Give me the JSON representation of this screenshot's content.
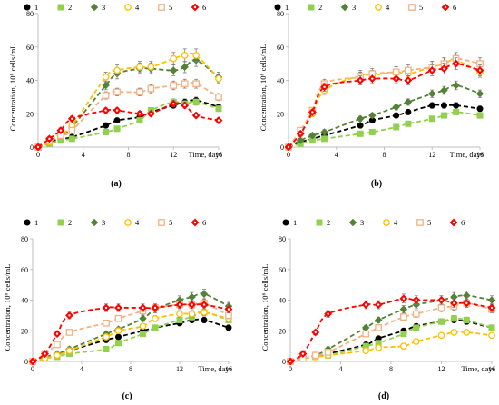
{
  "figure": {
    "panel_count": 4
  },
  "colors": {
    "1": "#000000",
    "2": "#92d050",
    "3": "#548235",
    "4": "#ffc000",
    "5": "#f4b183",
    "6": "#ff0000",
    "axis": "#bfbfbf",
    "error_bar": "#7f7f7f"
  },
  "chart_data": [
    {
      "panel_label": "(a)",
      "type": "scatter",
      "xlabel": "Time, days",
      "ylabel": "Concentration, 10⁶ cells/mL",
      "xlim": [
        0,
        16
      ],
      "ylim": [
        0,
        80
      ],
      "xticks": [
        0,
        4,
        8,
        12,
        16
      ],
      "yticks": [
        0,
        20,
        40,
        60,
        80
      ],
      "legend_position": "top",
      "series": [
        {
          "name": "1",
          "marker": "circle",
          "x": [
            0,
            1,
            2,
            3,
            6,
            7,
            9,
            10,
            12,
            13,
            14,
            16
          ],
          "y": [
            0,
            3,
            5,
            6,
            13,
            16,
            18,
            21,
            25,
            27,
            28,
            24
          ]
        },
        {
          "name": "2",
          "marker": "square",
          "x": [
            0,
            1,
            2,
            3,
            6,
            7,
            9,
            10,
            12,
            13,
            14,
            16
          ],
          "y": [
            0,
            2,
            4,
            5,
            9,
            11,
            16,
            22,
            27,
            26,
            27,
            23
          ]
        },
        {
          "name": "3",
          "marker": "diamond",
          "x": [
            0,
            1,
            2,
            3,
            6,
            7,
            9,
            10,
            12,
            13,
            14,
            16
          ],
          "y": [
            0,
            3,
            7,
            12,
            37,
            44,
            47,
            47,
            46,
            48,
            52,
            42
          ]
        },
        {
          "name": "4",
          "marker": "circle-open",
          "x": [
            0,
            1,
            2,
            3,
            6,
            7,
            9,
            10,
            12,
            13,
            14,
            16
          ],
          "y": [
            0,
            3,
            8,
            13,
            42,
            46,
            48,
            48,
            53,
            55,
            55,
            41
          ]
        },
        {
          "name": "5",
          "marker": "square-open",
          "x": [
            0,
            1,
            2,
            3,
            6,
            7,
            9,
            10,
            12,
            13,
            14,
            16
          ],
          "y": [
            0,
            4,
            7,
            10,
            31,
            33,
            33,
            35,
            37,
            38,
            38,
            30
          ]
        },
        {
          "name": "6",
          "marker": "diamond-red",
          "x": [
            0,
            1,
            2,
            3,
            6,
            7,
            9,
            10,
            12,
            13,
            14,
            16
          ],
          "y": [
            0,
            5,
            10,
            17,
            22,
            22,
            20,
            20,
            26,
            25,
            19,
            16
          ]
        }
      ]
    },
    {
      "panel_label": "(b)",
      "type": "scatter",
      "xlabel": "Time, days",
      "ylabel": "Concentration, 10⁶ cells/mL",
      "xlim": [
        0,
        16
      ],
      "ylim": [
        0,
        80
      ],
      "xticks": [
        0,
        4,
        8,
        12,
        16
      ],
      "yticks": [
        0,
        20,
        40,
        60,
        80
      ],
      "legend_position": "top",
      "series": [
        {
          "name": "1",
          "marker": "circle",
          "x": [
            0,
            1,
            2,
            3,
            6,
            7,
            9,
            10,
            12,
            13,
            14,
            16
          ],
          "y": [
            0,
            3,
            5,
            7,
            13,
            16,
            19,
            21,
            25,
            25,
            25,
            23
          ]
        },
        {
          "name": "2",
          "marker": "square",
          "x": [
            0,
            1,
            2,
            3,
            6,
            7,
            9,
            10,
            12,
            13,
            14,
            16
          ],
          "y": [
            0,
            2,
            4,
            5,
            8,
            9,
            12,
            14,
            17,
            19,
            21,
            19
          ]
        },
        {
          "name": "3",
          "marker": "diamond",
          "x": [
            0,
            1,
            2,
            3,
            6,
            7,
            9,
            10,
            12,
            13,
            14,
            16
          ],
          "y": [
            0,
            4,
            7,
            9,
            17,
            19,
            24,
            27,
            32,
            34,
            37,
            32
          ]
        },
        {
          "name": "4",
          "marker": "circle-open",
          "x": [
            0,
            1,
            2,
            3,
            6,
            7,
            9,
            10,
            12,
            13,
            14,
            16
          ],
          "y": [
            0,
            8,
            20,
            34,
            43,
            43,
            45,
            44,
            48,
            50,
            52,
            45
          ]
        },
        {
          "name": "5",
          "marker": "square-open",
          "x": [
            0,
            1,
            2,
            3,
            6,
            7,
            9,
            10,
            12,
            13,
            14,
            16
          ],
          "y": [
            0,
            10,
            22,
            38,
            42,
            44,
            45,
            46,
            48,
            50,
            53,
            50
          ]
        },
        {
          "name": "6",
          "marker": "diamond-red",
          "x": [
            0,
            1,
            2,
            3,
            6,
            7,
            9,
            10,
            12,
            13,
            14,
            16
          ],
          "y": [
            0,
            8,
            21,
            36,
            40,
            41,
            41,
            40,
            46,
            47,
            50,
            46
          ]
        }
      ]
    },
    {
      "panel_label": "(c)",
      "type": "scatter",
      "xlabel": "Time, days",
      "ylabel": "Concentration, 10⁶ cells/mL",
      "xlim": [
        0,
        16
      ],
      "ylim": [
        0,
        80
      ],
      "xticks": [
        0,
        4,
        8,
        12,
        16
      ],
      "yticks": [
        0,
        20,
        40,
        60,
        80
      ],
      "legend_position": "top",
      "series": [
        {
          "name": "1",
          "marker": "circle",
          "x": [
            0,
            1,
            2,
            3,
            6,
            7,
            9,
            10,
            12,
            13,
            14,
            16
          ],
          "y": [
            0,
            2,
            4,
            7,
            14,
            16,
            20,
            22,
            25,
            27,
            27,
            22
          ]
        },
        {
          "name": "2",
          "marker": "square",
          "x": [
            0,
            1,
            2,
            3,
            6,
            7,
            9,
            10,
            12,
            13,
            14,
            16
          ],
          "y": [
            0,
            2,
            3,
            5,
            8,
            12,
            18,
            22,
            27,
            29,
            32,
            27
          ]
        },
        {
          "name": "3",
          "marker": "diamond",
          "x": [
            0,
            1,
            2,
            3,
            6,
            7,
            9,
            10,
            12,
            13,
            14,
            16
          ],
          "y": [
            0,
            3,
            5,
            8,
            18,
            21,
            28,
            34,
            40,
            42,
            44,
            36
          ]
        },
        {
          "name": "4",
          "marker": "circle-open",
          "x": [
            0,
            1,
            2,
            3,
            6,
            7,
            9,
            10,
            12,
            13,
            14,
            16
          ],
          "y": [
            0,
            2,
            4,
            7,
            16,
            20,
            23,
            28,
            31,
            31,
            32,
            28
          ]
        },
        {
          "name": "5",
          "marker": "square-open",
          "x": [
            0,
            1,
            2,
            3,
            6,
            7,
            9,
            10,
            12,
            13,
            14,
            16
          ],
          "y": [
            0,
            5,
            11,
            19,
            25,
            28,
            33,
            35,
            37,
            37,
            38,
            30
          ]
        },
        {
          "name": "6",
          "marker": "diamond-red",
          "x": [
            0,
            1,
            2,
            3,
            6,
            7,
            9,
            10,
            12,
            13,
            14,
            16
          ],
          "y": [
            0,
            5,
            18,
            30,
            35,
            35,
            35,
            35,
            37,
            37,
            37,
            34
          ]
        }
      ]
    },
    {
      "panel_label": "(d)",
      "type": "scatter",
      "xlabel": "Time, days",
      "ylabel": "Concentration, 10⁶ cells/mL",
      "xlim": [
        0,
        16
      ],
      "ylim": [
        0,
        80
      ],
      "xticks": [
        0,
        4,
        8,
        12,
        16
      ],
      "yticks": [
        0,
        20,
        40,
        60,
        80
      ],
      "legend_position": "top",
      "series": [
        {
          "name": "1",
          "marker": "circle",
          "x": [
            0,
            1,
            2,
            3,
            6,
            7,
            9,
            10,
            12,
            13,
            14,
            16
          ],
          "y": [
            0,
            2,
            3,
            5,
            11,
            15,
            20,
            23,
            26,
            27,
            26,
            22
          ]
        },
        {
          "name": "2",
          "marker": "square",
          "x": [
            0,
            1,
            2,
            3,
            6,
            7,
            9,
            10,
            12,
            13,
            14,
            16
          ],
          "y": [
            0,
            2,
            3,
            4,
            10,
            12,
            18,
            22,
            26,
            28,
            27,
            22
          ]
        },
        {
          "name": "3",
          "marker": "diamond",
          "x": [
            0,
            1,
            2,
            3,
            6,
            7,
            9,
            10,
            12,
            13,
            14,
            16
          ],
          "y": [
            0,
            2,
            4,
            8,
            22,
            27,
            34,
            37,
            40,
            42,
            43,
            40
          ]
        },
        {
          "name": "4",
          "marker": "circle-open",
          "x": [
            0,
            1,
            2,
            3,
            6,
            7,
            9,
            10,
            12,
            13,
            14,
            16
          ],
          "y": [
            0,
            2,
            3,
            4,
            7,
            9,
            10,
            13,
            17,
            19,
            19,
            17
          ]
        },
        {
          "name": "5",
          "marker": "square-open",
          "x": [
            0,
            1,
            2,
            3,
            6,
            7,
            9,
            10,
            12,
            13,
            14,
            16
          ],
          "y": [
            0,
            2,
            4,
            6,
            18,
            22,
            29,
            31,
            35,
            36,
            38,
            34
          ]
        },
        {
          "name": "6",
          "marker": "diamond-red",
          "x": [
            0,
            1,
            2,
            3,
            6,
            7,
            9,
            10,
            12,
            13,
            14,
            16
          ],
          "y": [
            0,
            5,
            19,
            31,
            37,
            37,
            41,
            40,
            40,
            38,
            38,
            35
          ]
        }
      ]
    }
  ]
}
